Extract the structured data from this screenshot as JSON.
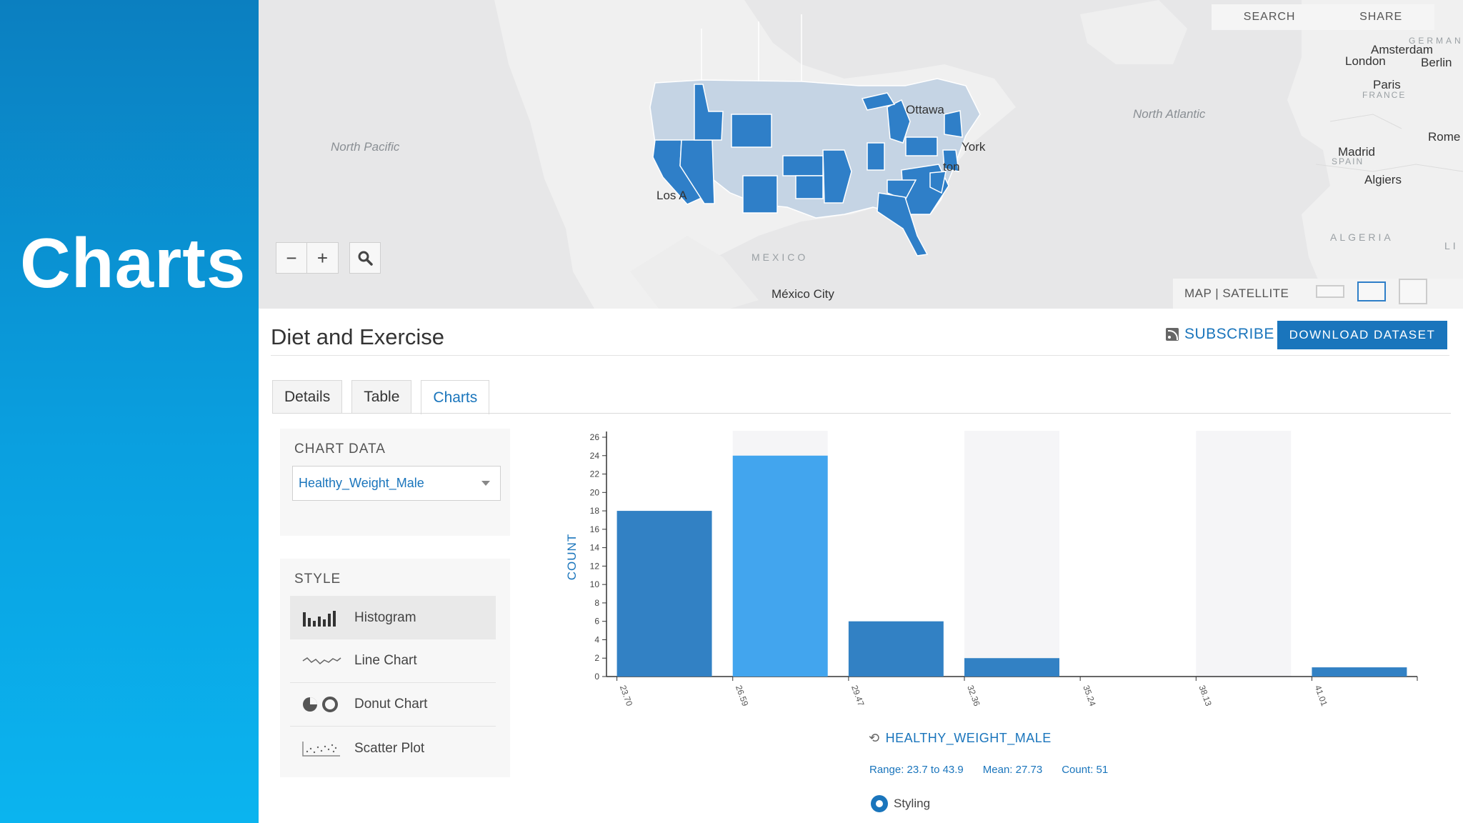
{
  "slide": {
    "title": "Charts"
  },
  "map": {
    "top_buttons": [
      "SEARCH",
      "SHARE"
    ],
    "zoom_out": "−",
    "zoom_in": "+",
    "search_icon": "magnifier-icon",
    "basemap_toggle": "MAP | SATELLITE",
    "labels": {
      "north_pacific": "North Pacific",
      "north_atlantic": "North Atlantic",
      "ottawa": "Ottawa",
      "new_york": "York",
      "boston": "ton",
      "los_angeles": "Los A",
      "mexico": "MEXICO",
      "mexico_city": "México City",
      "amsterdam": "Amsterdam",
      "london": "London",
      "berlin": "Berlin",
      "germany": "GERMANY",
      "paris": "Paris",
      "france": "FRANCE",
      "rome": "Rome",
      "madrid": "Madrid",
      "spain": "SPAIN",
      "algiers": "Algiers",
      "algeria": "ALGERIA",
      "libya_fragment": "LI"
    },
    "highlight_color": "#2f7fc8",
    "base_state_color": "#c5d4e4"
  },
  "dataset": {
    "title": "Diet and Exercise",
    "subscribe_label": "SUBSCRIBE",
    "download_label": "DOWNLOAD DATASET"
  },
  "tabs": [
    {
      "label": "Details",
      "active": false
    },
    {
      "label": "Table",
      "active": false
    },
    {
      "label": "Charts",
      "active": true
    }
  ],
  "chart_panel": {
    "chart_data_label": "CHART DATA",
    "selected_field": "Healthy_Weight_Male",
    "style_label": "STYLE",
    "styles": [
      {
        "label": "Histogram",
        "icon": "histogram-icon",
        "active": true
      },
      {
        "label": "Line Chart",
        "icon": "line-chart-icon",
        "active": false
      },
      {
        "label": "Donut Chart",
        "icon": "donut-chart-icon",
        "active": false
      },
      {
        "label": "Scatter Plot",
        "icon": "scatter-plot-icon",
        "active": false
      }
    ]
  },
  "chart_data": {
    "type": "bar",
    "categories": [
      "23.70",
      "26.59",
      "29.47",
      "32.36",
      "35.24",
      "38.13",
      "41.01"
    ],
    "values": [
      18,
      24,
      6,
      2,
      0,
      0,
      1
    ],
    "highlight_index": 1,
    "ylabel": "COUNT",
    "xlabel": "",
    "ylim": [
      0,
      26
    ],
    "yticks": [
      0,
      2,
      4,
      6,
      8,
      10,
      12,
      14,
      16,
      18,
      20,
      22,
      24,
      26
    ],
    "colors": {
      "bar": "#3281c4",
      "highlight": "#42a5ee",
      "band": "#f5f5f7"
    },
    "field_name": "HEALTHY_WEIGHT_MALE",
    "stats": {
      "range": "Range: 23.7 to 43.9",
      "mean": "Mean: 27.73",
      "count": "Count: 51"
    },
    "styling_label": "Styling"
  }
}
